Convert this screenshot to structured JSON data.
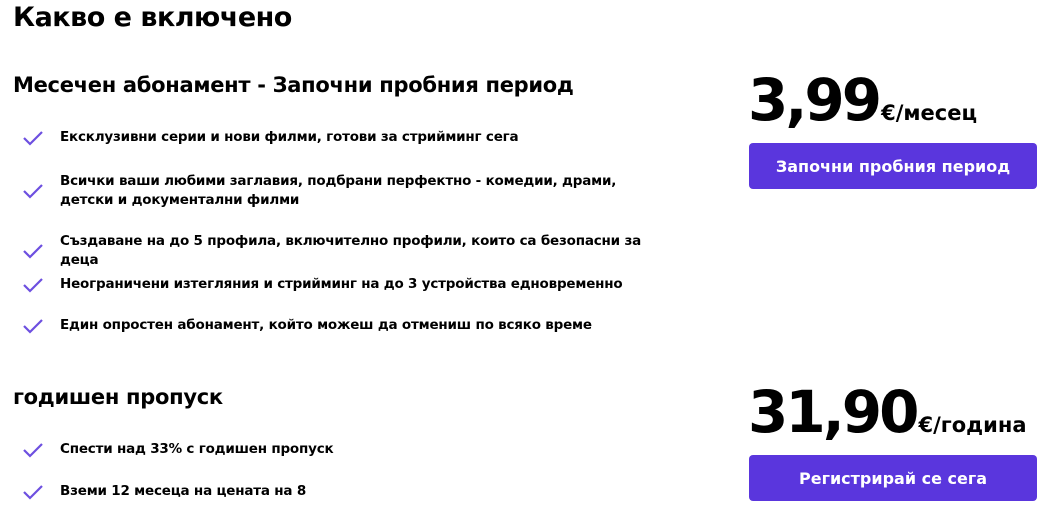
{
  "page_title": "Какво е включено",
  "colors": {
    "accent": "#5a36dd",
    "check": "#6d4fe0"
  },
  "plans": [
    {
      "title": "Месечен абонамент - Започни пробния период",
      "price": "3,99",
      "unit": "€/месец",
      "button": "Започни пробния период",
      "features": [
        "Ексклузивни серии и нови филми, готови за стрийминг сега",
        "Всички ваши любими заглавия, подбрани перфектно - комедии, драми, детски и документални филми",
        "Създаване на до 5 профила, включително профили, които са безопасни за деца",
        "Неограничени изтегляния и стрийминг на до 3 устройства едновременно",
        "Един опростен абонамент, който можеш да отмениш по всяко време"
      ]
    },
    {
      "title": "годишен пропуск",
      "price": "31,90",
      "unit": "€/година",
      "button": "Регистрирай се сега",
      "features": [
        "Спести над 33% с годишен пропуск",
        "Вземи 12 месеца на цената на 8"
      ]
    }
  ]
}
